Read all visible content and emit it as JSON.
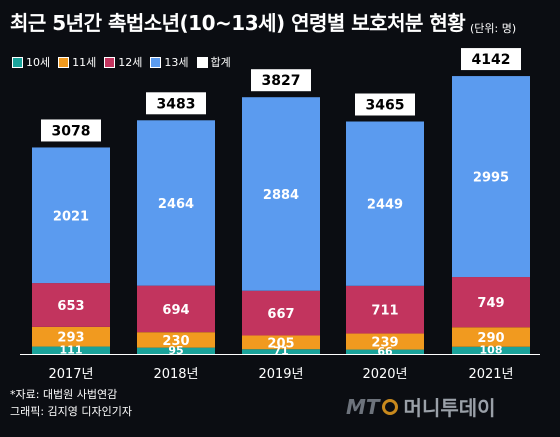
{
  "title": "최근 5년간 촉법소년(10~13세) 연령별 보호처분 현황",
  "unit": "(단위: 명)",
  "source_lines": [
    "*자료: 대법원 사법연감",
    "그래픽: 김지영 디자인기자"
  ],
  "logo": {
    "mt": "MT",
    "name": "머니투데이"
  },
  "colors": {
    "age10": "#1aa29a",
    "age11": "#f19a1f",
    "age12": "#c2345e",
    "age13": "#5b9bef",
    "total": "#ffffff"
  },
  "chart_data": {
    "type": "bar",
    "stacked": true,
    "categories": [
      "2017년",
      "2018년",
      "2019년",
      "2020년",
      "2021년"
    ],
    "series": [
      {
        "name": "10세",
        "values": [
          111,
          95,
          71,
          66,
          108
        ]
      },
      {
        "name": "11세",
        "values": [
          293,
          230,
          205,
          239,
          290
        ]
      },
      {
        "name": "12세",
        "values": [
          653,
          694,
          667,
          711,
          749
        ]
      },
      {
        "name": "13세",
        "values": [
          2021,
          2464,
          2884,
          2449,
          2995
        ]
      }
    ],
    "totals_label": "합계",
    "totals": [
      3078,
      3483,
      3827,
      3465,
      4142
    ],
    "legend_position": "top-left",
    "grid": false
  }
}
